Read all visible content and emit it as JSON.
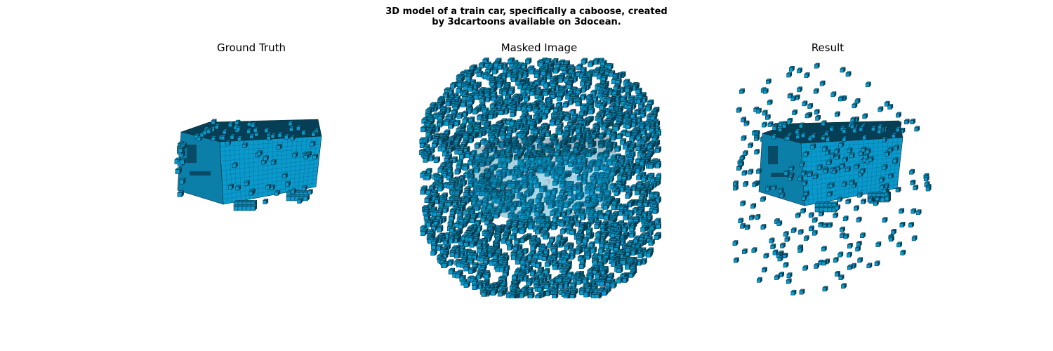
{
  "figure": {
    "title_line1": "3D model of a train car, specifically a caboose, created",
    "title_line2": "by 3dcartoons available on 3docean."
  },
  "panels": [
    {
      "id": "ground-truth",
      "title": "Ground Truth"
    },
    {
      "id": "masked-image",
      "title": "Masked Image"
    },
    {
      "id": "result",
      "title": "Result"
    }
  ],
  "colors": {
    "voxel_face": "#0a99cc",
    "voxel_top": "#0b7fa8",
    "voxel_dark": "#063f55",
    "voxel_edge": "#04303f",
    "background": "#ffffff"
  }
}
